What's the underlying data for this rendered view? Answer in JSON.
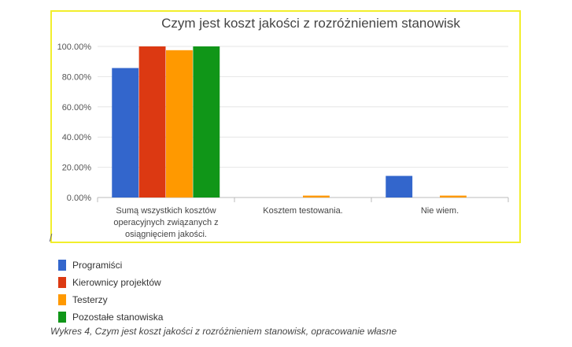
{
  "chart_data": {
    "type": "bar",
    "title": "Czym jest koszt jakości z rozróżnieniem stanowisk",
    "categories": [
      [
        "Sumą wszystkich kosztów",
        "operacyjnych związanych z",
        "osiągnięciem jakości."
      ],
      [
        "Kosztem testowania."
      ],
      [
        "Nie wiem."
      ]
    ],
    "ylim": [
      0,
      100
    ],
    "yticks": [
      0,
      20,
      40,
      60,
      80,
      100
    ],
    "ytick_labels": [
      "0.00%",
      "20.00%",
      "40.00%",
      "60.00%",
      "80.00%",
      "100.00%"
    ],
    "grid": true,
    "legend_position": "bottom-left-outside",
    "series": [
      {
        "name": "Programiści",
        "color": "#3366cc",
        "values": [
          85.7,
          0,
          14.3
        ]
      },
      {
        "name": "Kierownicy projektów",
        "color": "#dc3912",
        "values": [
          100,
          0,
          0
        ]
      },
      {
        "name": "Testerzy",
        "color": "#ff9900",
        "values": [
          97.5,
          1.25,
          1.25
        ]
      },
      {
        "name": "Pozostałe stanowiska",
        "color": "#109618",
        "values": [
          100,
          0,
          0
        ]
      }
    ]
  },
  "legend": {
    "items": [
      {
        "label": "Programiści",
        "color": "#3366cc"
      },
      {
        "label": "Kierownicy projektów",
        "color": "#dc3912"
      },
      {
        "label": "Testerzy",
        "color": "#ff9900"
      },
      {
        "label": "Pozostałe stanowiska",
        "color": "#109618"
      }
    ]
  },
  "caption": "Wykres 4, Czym jest koszt jakości z rozróżnieniem stanowisk, opracowanie własne"
}
